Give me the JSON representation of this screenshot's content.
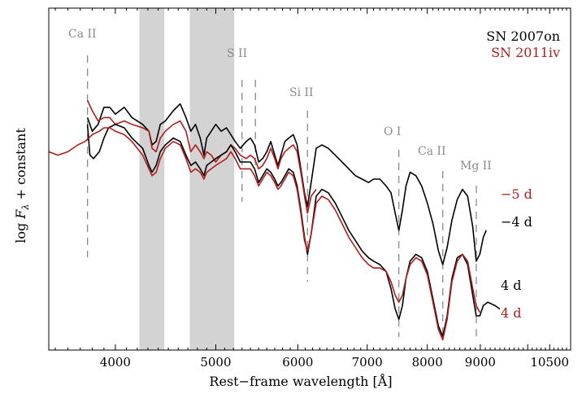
{
  "chart_data": {
    "type": "line",
    "xlabel": "Rest−frame wavelength [Å]",
    "ylabel": "log F_λ + constant",
    "ylabel_parts": {
      "prefix": "log ",
      "f": "F",
      "sub": "λ",
      "suffix": " + constant"
    },
    "x_scale": "log",
    "xlim": [
      3450,
      11000
    ],
    "ylim": [
      0,
      100
    ],
    "x_ticks": [
      4000,
      5000,
      6000,
      7000,
      8000,
      9000,
      10500
    ],
    "x_tick_labels": [
      "4000",
      "5000",
      "6000",
      "7000",
      "8000",
      "9000",
      "10500"
    ],
    "y_ticks": "none",
    "legend_position": "top-right",
    "legend": [
      {
        "label": "SN 2007on",
        "color": "#000000"
      },
      {
        "label": "SN 2011iv",
        "color": "#b01c1c"
      }
    ],
    "shaded_bands": [
      {
        "x0": 4220,
        "x1": 4460,
        "color": "#d3d3d3"
      },
      {
        "x0": 4720,
        "x1": 5210,
        "color": "#d3d3d3"
      }
    ],
    "line_labels": [
      {
        "text": "Ca II",
        "lines": [
          3760
        ]
      },
      {
        "text": "S II",
        "lines": [
          5300,
          5460
        ]
      },
      {
        "text": "Si  II",
        "lines": [
          6130
        ]
      },
      {
        "text": "O I",
        "lines": [
          7510
        ]
      },
      {
        "text": "Ca II",
        "lines": [
          8280
        ]
      },
      {
        "text": "Mg II",
        "lines": [
          8920
        ]
      }
    ],
    "epoch_labels": [
      {
        "text": "−5 d",
        "color": "#b01c1c"
      },
      {
        "text": "−4 d",
        "color": "#000000"
      },
      {
        "text": "4 d",
        "color": "#000000"
      },
      {
        "text": "4 d",
        "color": "#b01c1c"
      }
    ],
    "series": [
      {
        "name": "SN 2007on",
        "epoch": "−4 d",
        "color": "#000000",
        "points": [
          [
            3760,
            68
          ],
          [
            3800,
            64
          ],
          [
            3850,
            66
          ],
          [
            3900,
            71
          ],
          [
            3950,
            71
          ],
          [
            4000,
            69
          ],
          [
            4080,
            71
          ],
          [
            4150,
            68
          ],
          [
            4250,
            66
          ],
          [
            4310,
            64
          ],
          [
            4340,
            60
          ],
          [
            4380,
            61
          ],
          [
            4420,
            66
          ],
          [
            4470,
            67
          ],
          [
            4550,
            70
          ],
          [
            4620,
            72
          ],
          [
            4680,
            68
          ],
          [
            4730,
            64
          ],
          [
            4780,
            66
          ],
          [
            4830,
            62
          ],
          [
            4870,
            57
          ],
          [
            4900,
            62
          ],
          [
            4950,
            64
          ],
          [
            5000,
            66
          ],
          [
            5060,
            64
          ],
          [
            5120,
            65
          ],
          [
            5170,
            63
          ],
          [
            5220,
            61
          ],
          [
            5280,
            59
          ],
          [
            5350,
            61
          ],
          [
            5400,
            62
          ],
          [
            5450,
            60
          ],
          [
            5500,
            55
          ],
          [
            5550,
            56
          ],
          [
            5600,
            58
          ],
          [
            5650,
            61
          ],
          [
            5700,
            57
          ],
          [
            5740,
            54
          ],
          [
            5780,
            57
          ],
          [
            5830,
            61
          ],
          [
            5880,
            62
          ],
          [
            5940,
            63
          ],
          [
            5990,
            60
          ],
          [
            6040,
            53
          ],
          [
            6090,
            46
          ],
          [
            6130,
            42
          ],
          [
            6180,
            49
          ],
          [
            6250,
            59
          ],
          [
            6330,
            60
          ],
          [
            6420,
            59
          ],
          [
            6520,
            57
          ],
          [
            6620,
            55
          ],
          [
            6720,
            53
          ],
          [
            6820,
            51
          ],
          [
            6920,
            50
          ],
          [
            7020,
            49
          ],
          [
            7100,
            50
          ],
          [
            7200,
            50
          ],
          [
            7300,
            48
          ],
          [
            7380,
            46
          ],
          [
            7450,
            40
          ],
          [
            7510,
            35
          ],
          [
            7570,
            41
          ],
          [
            7630,
            48
          ],
          [
            7700,
            52
          ],
          [
            7800,
            51
          ],
          [
            7900,
            48
          ],
          [
            8000,
            43
          ],
          [
            8100,
            37
          ],
          [
            8200,
            29
          ],
          [
            8280,
            25
          ],
          [
            8360,
            30
          ],
          [
            8450,
            38
          ],
          [
            8550,
            44
          ],
          [
            8650,
            47
          ],
          [
            8750,
            45
          ],
          [
            8850,
            36
          ],
          [
            8920,
            26
          ],
          [
            8990,
            28
          ],
          [
            9060,
            33
          ],
          [
            9120,
            35
          ]
        ]
      },
      {
        "name": "SN 2011iv",
        "epoch": "−5 d",
        "color": "#b01c1c",
        "points": [
          [
            3760,
            73
          ],
          [
            3800,
            70
          ],
          [
            3850,
            67
          ],
          [
            3900,
            68
          ],
          [
            3950,
            68
          ],
          [
            4000,
            66
          ],
          [
            4080,
            67
          ],
          [
            4150,
            66
          ],
          [
            4250,
            65
          ],
          [
            4310,
            64
          ],
          [
            4340,
            59
          ],
          [
            4380,
            58
          ],
          [
            4420,
            62
          ],
          [
            4470,
            64
          ],
          [
            4550,
            66
          ],
          [
            4620,
            67
          ],
          [
            4680,
            64
          ],
          [
            4730,
            58
          ],
          [
            4780,
            60
          ],
          [
            4830,
            58
          ],
          [
            4870,
            56
          ],
          [
            4900,
            58
          ],
          [
            4950,
            57
          ],
          [
            5000,
            55
          ],
          [
            5060,
            57
          ],
          [
            5120,
            58
          ],
          [
            5170,
            60
          ],
          [
            5220,
            59
          ],
          [
            5280,
            57
          ],
          [
            5350,
            56
          ],
          [
            5400,
            57
          ],
          [
            5450,
            56
          ],
          [
            5500,
            53
          ],
          [
            5550,
            54
          ],
          [
            5600,
            56
          ],
          [
            5650,
            59
          ],
          [
            5700,
            56
          ],
          [
            5740,
            53
          ],
          [
            5780,
            56
          ],
          [
            5830,
            58
          ],
          [
            5880,
            59
          ],
          [
            5940,
            60
          ],
          [
            5990,
            58
          ],
          [
            6040,
            52
          ],
          [
            6090,
            45
          ],
          [
            6130,
            40
          ],
          [
            6180,
            45
          ],
          [
            6250,
            47
          ]
        ]
      },
      {
        "name": "SN 2007on",
        "epoch": "4 d",
        "color": "#000000",
        "points": [
          [
            3760,
            66
          ],
          [
            3780,
            57
          ],
          [
            3810,
            56
          ],
          [
            3860,
            58
          ],
          [
            3900,
            62
          ],
          [
            3940,
            65
          ],
          [
            4000,
            66
          ],
          [
            4080,
            65
          ],
          [
            4150,
            62
          ],
          [
            4250,
            59
          ],
          [
            4310,
            54
          ],
          [
            4340,
            52
          ],
          [
            4380,
            54
          ],
          [
            4420,
            58
          ],
          [
            4470,
            60
          ],
          [
            4550,
            62
          ],
          [
            4620,
            61
          ],
          [
            4680,
            57
          ],
          [
            4730,
            54
          ],
          [
            4780,
            55
          ],
          [
            4830,
            53
          ],
          [
            4870,
            51
          ],
          [
            4900,
            54
          ],
          [
            4950,
            55
          ],
          [
            5000,
            56
          ],
          [
            5060,
            57
          ],
          [
            5120,
            58
          ],
          [
            5170,
            60
          ],
          [
            5220,
            58
          ],
          [
            5280,
            55
          ],
          [
            5350,
            55
          ],
          [
            5400,
            55
          ],
          [
            5450,
            53
          ],
          [
            5500,
            49
          ],
          [
            5550,
            51
          ],
          [
            5600,
            53
          ],
          [
            5650,
            52
          ],
          [
            5700,
            50
          ],
          [
            5740,
            48
          ],
          [
            5780,
            49
          ],
          [
            5830,
            51
          ],
          [
            5880,
            53
          ],
          [
            5940,
            52
          ],
          [
            5990,
            48
          ],
          [
            6040,
            41
          ],
          [
            6090,
            33
          ],
          [
            6130,
            28
          ],
          [
            6180,
            34
          ],
          [
            6250,
            45
          ],
          [
            6330,
            47
          ],
          [
            6420,
            46
          ],
          [
            6520,
            43
          ],
          [
            6620,
            39
          ],
          [
            6720,
            35
          ],
          [
            6820,
            32
          ],
          [
            6920,
            29
          ],
          [
            7020,
            27
          ],
          [
            7100,
            26
          ],
          [
            7200,
            25
          ],
          [
            7300,
            23
          ],
          [
            7380,
            18
          ],
          [
            7450,
            12
          ],
          [
            7510,
            9
          ],
          [
            7570,
            13
          ],
          [
            7630,
            21
          ],
          [
            7700,
            26
          ],
          [
            7800,
            28
          ],
          [
            7900,
            27
          ],
          [
            8000,
            23
          ],
          [
            8100,
            15
          ],
          [
            8200,
            7
          ],
          [
            8280,
            4
          ],
          [
            8360,
            10
          ],
          [
            8450,
            21
          ],
          [
            8550,
            27
          ],
          [
            8650,
            28
          ],
          [
            8750,
            25
          ],
          [
            8850,
            16
          ],
          [
            8920,
            10
          ],
          [
            8990,
            10
          ],
          [
            9060,
            13
          ],
          [
            9150,
            14
          ],
          [
            9300,
            13
          ],
          [
            9400,
            12
          ]
        ]
      },
      {
        "name": "SN 2011iv",
        "epoch": "4 d",
        "color": "#b01c1c",
        "points": [
          [
            3450,
            58
          ],
          [
            3520,
            57
          ],
          [
            3600,
            58
          ],
          [
            3680,
            60
          ],
          [
            3740,
            61
          ],
          [
            3800,
            63
          ],
          [
            3860,
            64
          ],
          [
            3900,
            65
          ],
          [
            3950,
            65
          ],
          [
            4000,
            64
          ],
          [
            4080,
            63
          ],
          [
            4150,
            61
          ],
          [
            4250,
            57
          ],
          [
            4310,
            53
          ],
          [
            4340,
            51
          ],
          [
            4380,
            52
          ],
          [
            4420,
            56
          ],
          [
            4470,
            59
          ],
          [
            4550,
            61
          ],
          [
            4620,
            60
          ],
          [
            4680,
            56
          ],
          [
            4730,
            52
          ],
          [
            4780,
            53
          ],
          [
            4830,
            52
          ],
          [
            4870,
            50
          ],
          [
            4900,
            52
          ],
          [
            4950,
            53
          ],
          [
            5000,
            54
          ],
          [
            5060,
            55
          ],
          [
            5120,
            56
          ],
          [
            5170,
            58
          ],
          [
            5220,
            56
          ],
          [
            5280,
            53
          ],
          [
            5350,
            53
          ],
          [
            5400,
            53
          ],
          [
            5450,
            51
          ],
          [
            5500,
            48
          ],
          [
            5550,
            50
          ],
          [
            5600,
            52
          ],
          [
            5650,
            51
          ],
          [
            5700,
            49
          ],
          [
            5740,
            47
          ],
          [
            5780,
            48
          ],
          [
            5830,
            50
          ],
          [
            5880,
            52
          ],
          [
            5940,
            51
          ],
          [
            5990,
            47
          ],
          [
            6040,
            40
          ],
          [
            6090,
            32
          ],
          [
            6130,
            29
          ],
          [
            6180,
            34
          ],
          [
            6250,
            43
          ],
          [
            6330,
            45
          ],
          [
            6420,
            44
          ],
          [
            6520,
            41
          ],
          [
            6620,
            37
          ],
          [
            6720,
            33
          ],
          [
            6820,
            30
          ],
          [
            6920,
            27
          ],
          [
            7020,
            25
          ],
          [
            7100,
            24
          ],
          [
            7200,
            24
          ],
          [
            7300,
            23
          ],
          [
            7380,
            20
          ],
          [
            7450,
            16
          ],
          [
            7510,
            14
          ],
          [
            7570,
            16
          ],
          [
            7630,
            21
          ],
          [
            7700,
            25
          ],
          [
            7800,
            27
          ],
          [
            7900,
            26
          ],
          [
            8000,
            22
          ],
          [
            8100,
            14
          ],
          [
            8200,
            6
          ],
          [
            8280,
            3
          ],
          [
            8360,
            9
          ],
          [
            8450,
            20
          ],
          [
            8550,
            26
          ],
          [
            8650,
            28
          ],
          [
            8750,
            26
          ],
          [
            8850,
            18
          ],
          [
            8920,
            13
          ],
          [
            8990,
            11
          ]
        ]
      }
    ]
  }
}
